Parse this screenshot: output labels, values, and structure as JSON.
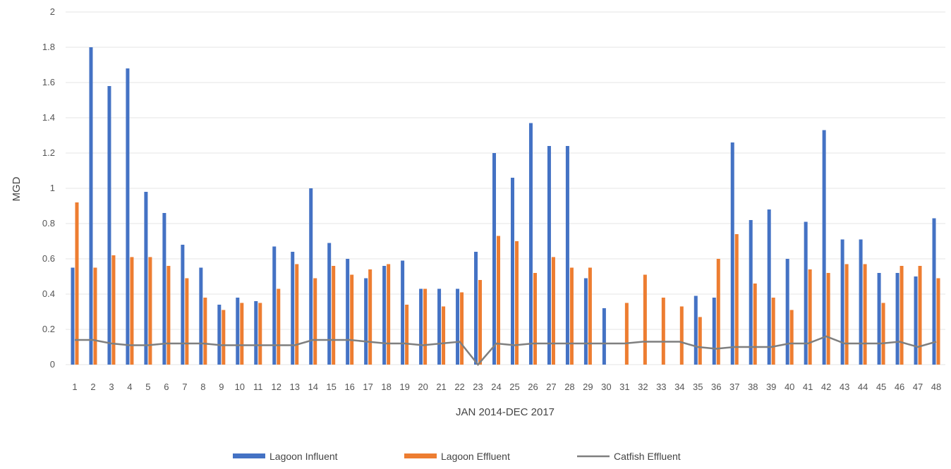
{
  "chart_data": {
    "type": "bar",
    "title": "",
    "xlabel": "JAN 2014-DEC 2017",
    "ylabel": "MGD",
    "ylim": [
      0,
      2
    ],
    "yticks": [
      0,
      0.2,
      0.4,
      0.6,
      0.8,
      1,
      1.2,
      1.4,
      1.6,
      1.8,
      2
    ],
    "grid": true,
    "legend_position": "bottom",
    "categories": [
      "1",
      "2",
      "3",
      "4",
      "5",
      "6",
      "7",
      "8",
      "9",
      "10",
      "11",
      "12",
      "13",
      "14",
      "15",
      "16",
      "17",
      "18",
      "19",
      "20",
      "21",
      "22",
      "23",
      "24",
      "25",
      "26",
      "27",
      "28",
      "29",
      "30",
      "31",
      "32",
      "33",
      "34",
      "35",
      "36",
      "37",
      "38",
      "39",
      "40",
      "41",
      "42",
      "43",
      "44",
      "45",
      "46",
      "47",
      "48"
    ],
    "series": [
      {
        "name": "Lagoon Influent",
        "kind": "bar",
        "color": "#4472C4",
        "values": [
          0.55,
          1.8,
          1.58,
          1.68,
          0.98,
          0.86,
          0.68,
          0.55,
          0.34,
          0.38,
          0.36,
          0.67,
          0.64,
          1.0,
          0.69,
          0.6,
          0.49,
          0.56,
          0.59,
          0.43,
          0.43,
          0.43,
          0.64,
          1.2,
          1.06,
          1.37,
          1.24,
          1.24,
          0.49,
          0.32,
          null,
          null,
          null,
          null,
          0.39,
          0.38,
          1.26,
          0.82,
          0.88,
          0.6,
          0.81,
          1.33,
          0.71,
          0.71,
          0.52,
          0.52,
          0.5,
          0.83
        ]
      },
      {
        "name": "Lagoon Effluent",
        "kind": "bar",
        "color": "#ED7D31",
        "values": [
          0.92,
          0.55,
          0.62,
          0.61,
          0.61,
          0.56,
          0.49,
          0.38,
          0.31,
          0.35,
          0.35,
          0.43,
          0.57,
          0.49,
          0.56,
          0.51,
          0.54,
          0.57,
          0.34,
          0.43,
          0.33,
          0.41,
          0.48,
          0.73,
          0.7,
          0.52,
          0.61,
          0.55,
          0.55,
          null,
          0.35,
          0.51,
          0.38,
          0.33,
          0.27,
          0.6,
          0.74,
          0.46,
          0.38,
          0.31,
          0.54,
          0.52,
          0.57,
          0.57,
          0.35,
          0.56,
          0.56,
          0.49
        ]
      },
      {
        "name": "Catfish Effluent",
        "kind": "line",
        "color": "#7F7F7F",
        "values": [
          0.14,
          0.14,
          0.12,
          0.11,
          0.11,
          0.12,
          0.12,
          0.12,
          0.11,
          0.11,
          0.11,
          0.11,
          0.11,
          0.14,
          0.14,
          0.14,
          0.13,
          0.12,
          0.12,
          0.11,
          0.12,
          0.13,
          0.0,
          0.12,
          0.11,
          0.12,
          0.12,
          0.12,
          0.12,
          0.12,
          0.12,
          0.13,
          0.13,
          0.13,
          0.1,
          0.09,
          0.1,
          0.1,
          0.1,
          0.12,
          0.12,
          0.16,
          0.12,
          0.12,
          0.12,
          0.13,
          0.1,
          0.13
        ]
      }
    ]
  }
}
